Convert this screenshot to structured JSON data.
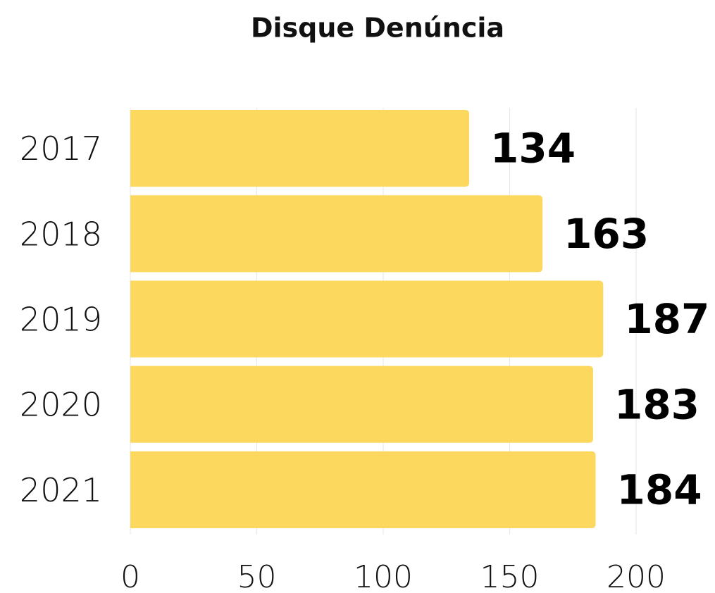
{
  "chart_data": {
    "type": "bar",
    "orientation": "horizontal",
    "title": "Disque Denúncia",
    "categories": [
      "2017",
      "2018",
      "2019",
      "2020",
      "2021"
    ],
    "values": [
      134,
      163,
      187,
      183,
      184
    ],
    "color": "#fcd95e",
    "xlim": [
      0,
      200
    ],
    "xticks": [
      0,
      50,
      100,
      150,
      200
    ],
    "grid": true
  }
}
